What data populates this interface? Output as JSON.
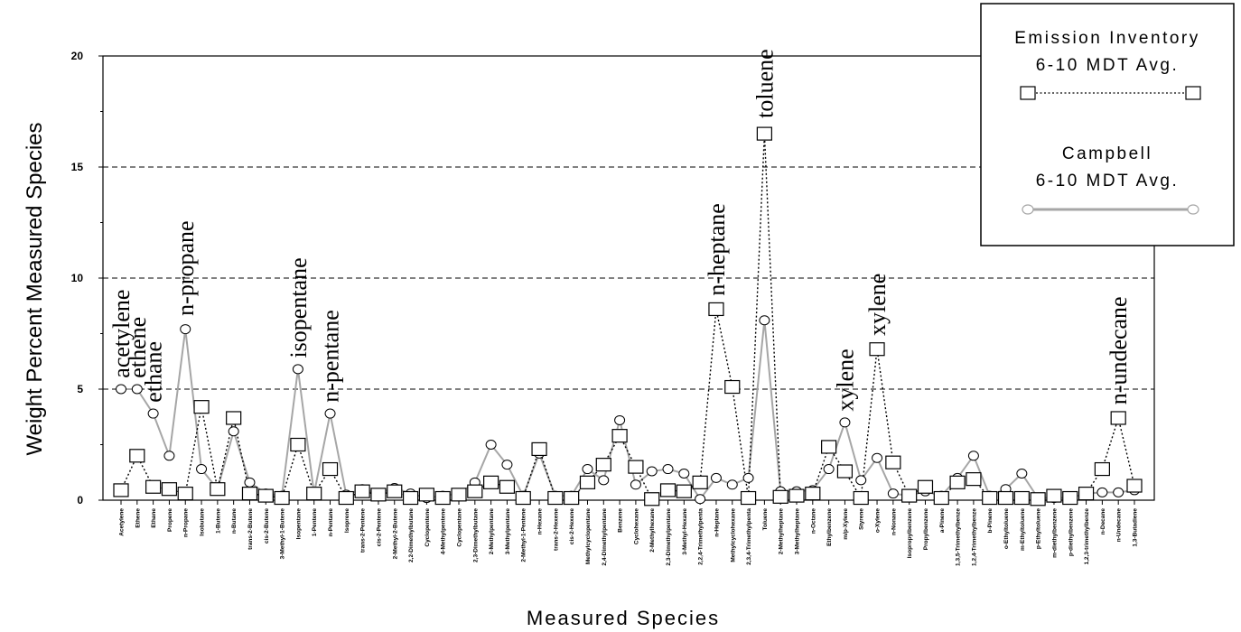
{
  "chart_data": {
    "type": "line",
    "ylabel": "Weight Percent Measured Species",
    "xlabel": "Measured Species",
    "ylim": [
      0,
      20
    ],
    "yticks": [
      0,
      5,
      10,
      15,
      20
    ],
    "grid": "dashed horizontal at 5, 10, 15",
    "legend_position": "top-right",
    "categories": [
      "Acetylene",
      "Ethene",
      "Ethane",
      "Propene",
      "n-Propane",
      "Isobutane",
      "1-Butene",
      "n-Butane",
      "trans-2-Butene",
      "cis-2-Butene",
      "3-Methyl-1-Butene",
      "Isopentane",
      "1-Pentene",
      "n-Pentane",
      "Isoprene",
      "trans-2-Pentene",
      "cis-2-Pentene",
      "2-Methyl-2-Butene",
      "2,2-Dimethylbutane",
      "Cyclopentene",
      "4-Methylpentene",
      "Cyclopentane",
      "2,3-Dimethylbutane",
      "2-Methylpentane",
      "3-Methylpentane",
      "2-Methyl-1-Pentene",
      "n-Hexane",
      "trans-2-Hexene",
      "cis-2-Hexene",
      "Methylcyclopentane",
      "2,4-Dimethylpentane",
      "Benzene",
      "Cyclohexane",
      "2-Methylhexane",
      "2,3-Dimethylpentane",
      "3-Methyl-Hexane",
      "2,2,4-Trimethylpenta",
      "n-Heptane",
      "Methylcyclohexane",
      "2,3,4-Trimethylpenta",
      "Toluene",
      "2-Methylheptane",
      "3-Methylheptane",
      "n-Octane",
      "Ethylbenzene",
      "m/p-Xylene",
      "Styrene",
      "o-Xylene",
      "n-Nonane",
      "Isopropylbenzene",
      "Propylbenzene",
      "a-Pinene",
      "1,3,5-Trimethylbenze",
      "1,2,4-Trimethylbenze",
      "b-Pinene",
      "o-Ethyltoluene",
      "m-Ethyltoluene",
      "p-Ethyltoluene",
      "m-diethylbenzene",
      "p-diethylbenzene",
      "1,2,3-trimethylbenze",
      "n-Decane",
      "n-Undecane",
      "1,3-Butadiene"
    ],
    "series": [
      {
        "name": "Emission Inventory 6-10 MDT Avg.",
        "line_style": "dotted",
        "marker": "square",
        "color": "#000000",
        "values": [
          0.45,
          2.0,
          0.6,
          0.5,
          0.3,
          4.2,
          0.5,
          3.7,
          0.3,
          0.2,
          0.1,
          2.5,
          0.3,
          1.4,
          0.1,
          0.4,
          0.25,
          0.4,
          0.1,
          0.25,
          0.1,
          0.25,
          0.4,
          0.8,
          0.6,
          0.1,
          2.3,
          0.1,
          0.1,
          0.8,
          1.6,
          2.9,
          1.5,
          0.05,
          0.45,
          0.4,
          0.8,
          8.6,
          5.1,
          0.1,
          16.5,
          0.15,
          0.2,
          0.3,
          2.4,
          1.3,
          0.1,
          6.8,
          1.7,
          0.2,
          0.6,
          0.1,
          0.8,
          0.95,
          0.1,
          0.1,
          0.1,
          0.05,
          0.2,
          0.1,
          0.3,
          1.4,
          3.7,
          0.65
        ]
      },
      {
        "name": "Campbell 6-10 MDT Avg.",
        "line_style": "solid",
        "marker": "circle",
        "color": "#a6a6a6",
        "values": [
          5.0,
          5.0,
          3.9,
          2.0,
          7.7,
          1.4,
          0.5,
          3.1,
          0.8,
          0.3,
          0.2,
          5.9,
          0.3,
          3.9,
          0.25,
          0.5,
          0.3,
          0.55,
          0.3,
          0.1,
          0.2,
          0.3,
          0.8,
          2.5,
          1.6,
          0.2,
          2.1,
          0.2,
          0.2,
          1.4,
          0.9,
          3.6,
          0.7,
          1.3,
          1.4,
          1.2,
          0.05,
          1.0,
          0.7,
          1.0,
          8.1,
          0.4,
          0.4,
          0.45,
          1.4,
          3.5,
          0.9,
          1.9,
          0.3,
          0.2,
          0.4,
          0.2,
          1.0,
          2.0,
          0.2,
          0.5,
          1.2,
          0.1,
          0.1,
          0.1,
          0.3,
          0.35,
          0.35,
          0.45
        ]
      }
    ],
    "annotations": [
      {
        "text": "acetylene",
        "category": "Acetylene",
        "y": 5.5
      },
      {
        "text": "ethene",
        "category": "Ethene",
        "y": 5.5
      },
      {
        "text": "ethane",
        "category": "Ethane",
        "y": 4.4
      },
      {
        "text": "n-propane",
        "category": "n-Propane",
        "y": 8.3
      },
      {
        "text": "isopentane",
        "category": "Isopentane",
        "y": 6.4
      },
      {
        "text": "n-pentane",
        "category": "n-Pentane",
        "y": 4.4
      },
      {
        "text": "n-heptane",
        "category": "n-Heptane",
        "y": 9.2
      },
      {
        "text": "toluene",
        "category": "Toluene",
        "y": 17.2
      },
      {
        "text": "xylene",
        "category": "m/p-Xylene",
        "y": 4.0
      },
      {
        "text": "xylene",
        "category": "o-Xylene",
        "y": 7.4
      },
      {
        "text": "n-undecane",
        "category": "n-Undecane",
        "y": 4.3
      }
    ],
    "legend": [
      {
        "line1": "Emission Inventory",
        "line2": "6-10 MDT Avg."
      },
      {
        "line1": "Campbell",
        "line2": "6-10 MDT Avg."
      }
    ]
  }
}
